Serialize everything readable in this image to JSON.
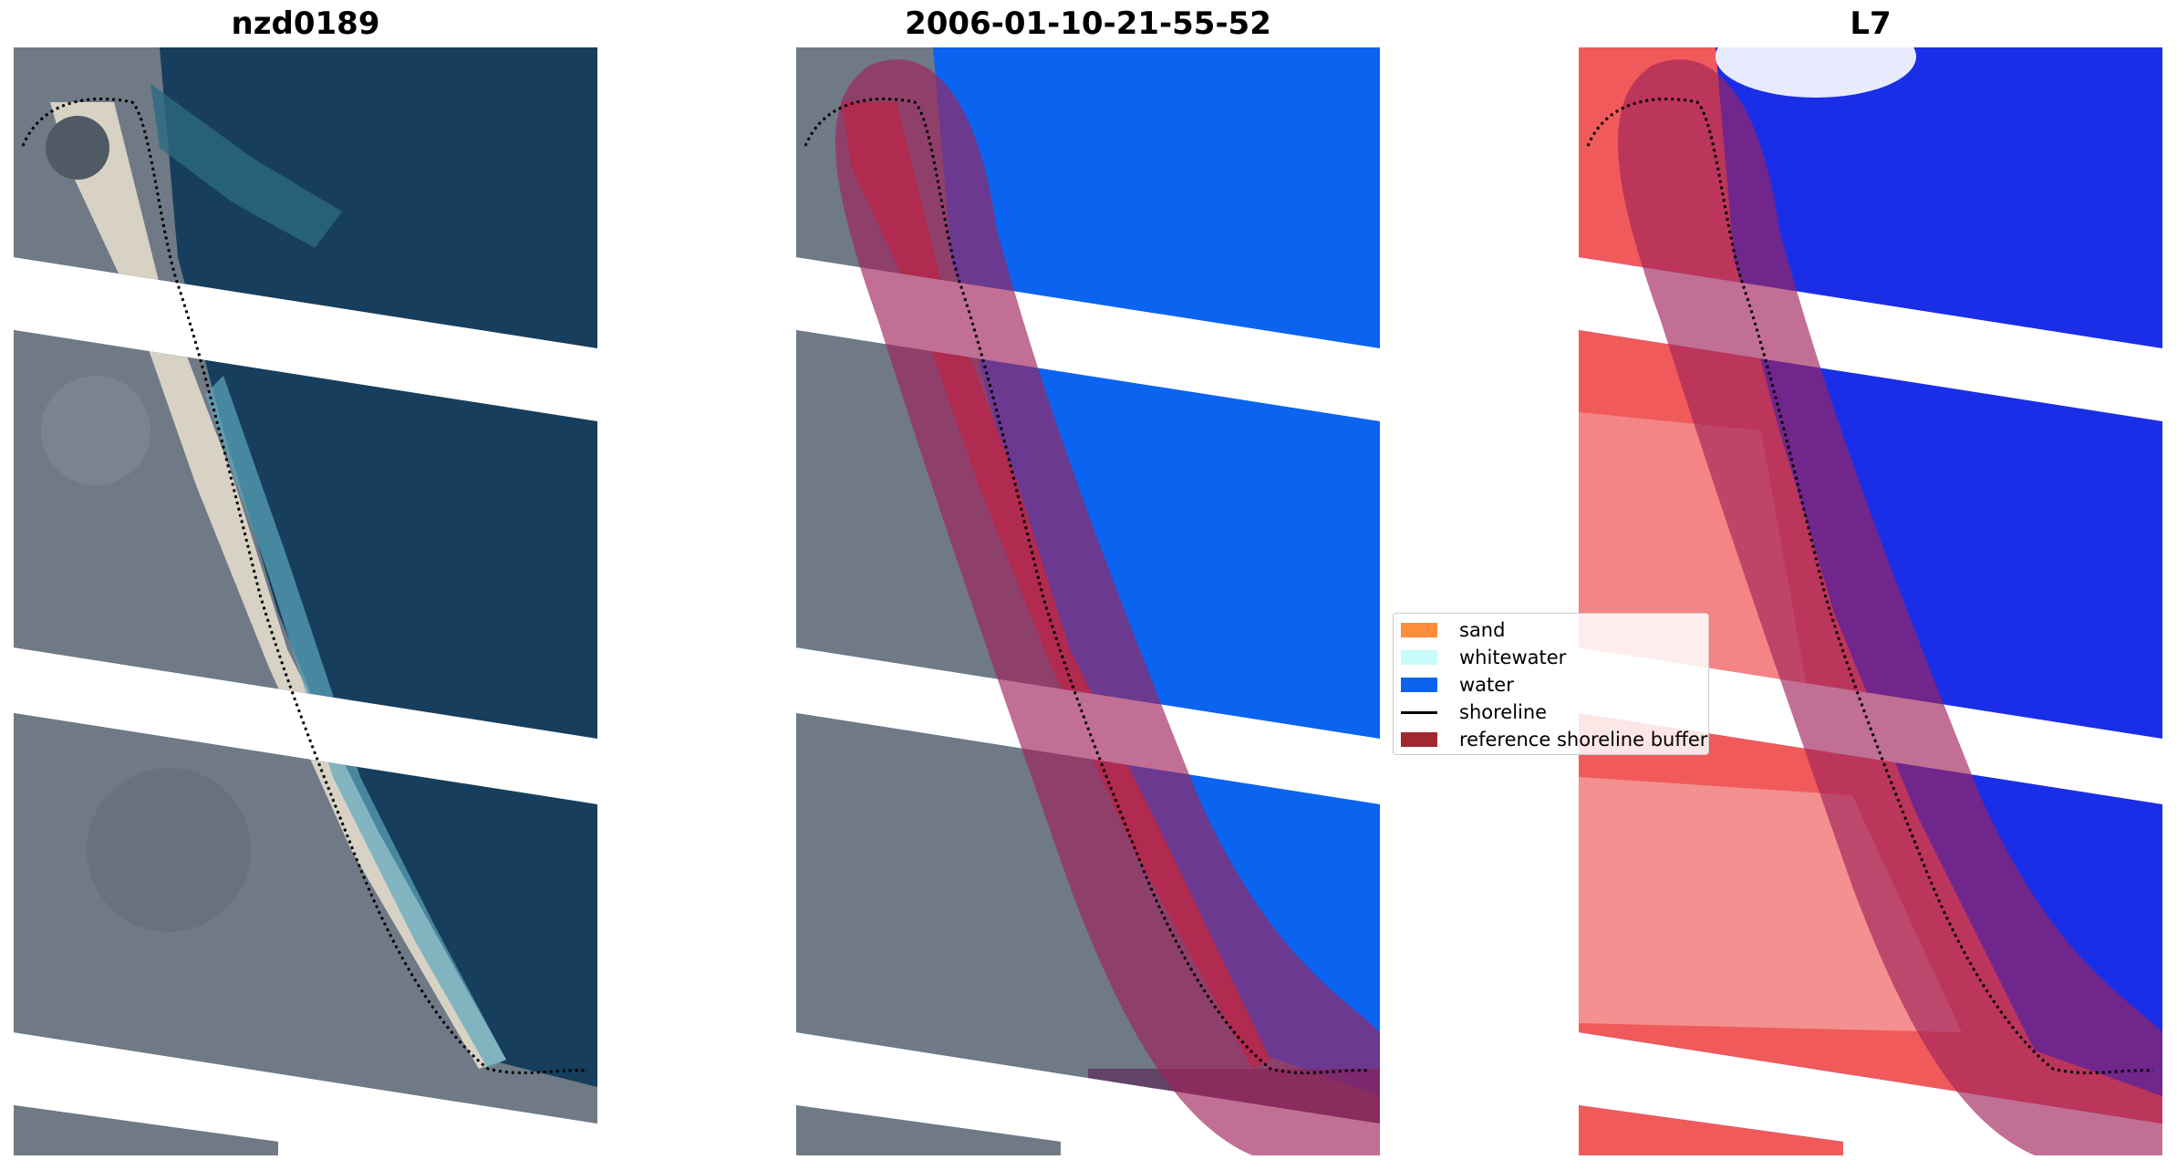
{
  "panels": {
    "left_title": "nzd0189",
    "middle_title": "2006-01-10-21-55-52",
    "right_title": "L7"
  },
  "legend": {
    "items": [
      {
        "label": "sand",
        "color": "#ff8c3a",
        "kind": "patch"
      },
      {
        "label": "whitewater",
        "color": "#c8fbfb",
        "kind": "patch"
      },
      {
        "label": "water",
        "color": "#0a64f0",
        "kind": "patch"
      },
      {
        "label": "shoreline",
        "color": "#000000",
        "kind": "line"
      },
      {
        "label": "reference shoreline buffer",
        "color": "#a0282e",
        "kind": "patch"
      }
    ]
  },
  "colors": {
    "water_dark": "#173e5c",
    "land_grey": "#6f7a86",
    "sand_beach": "#d8d2c4",
    "class_water": "#0a64f0",
    "class_sand": "#d23a3a",
    "buffer_overlay": "#a0225a",
    "index_red": "#f05a5a",
    "index_blue": "#1a2ee8"
  }
}
